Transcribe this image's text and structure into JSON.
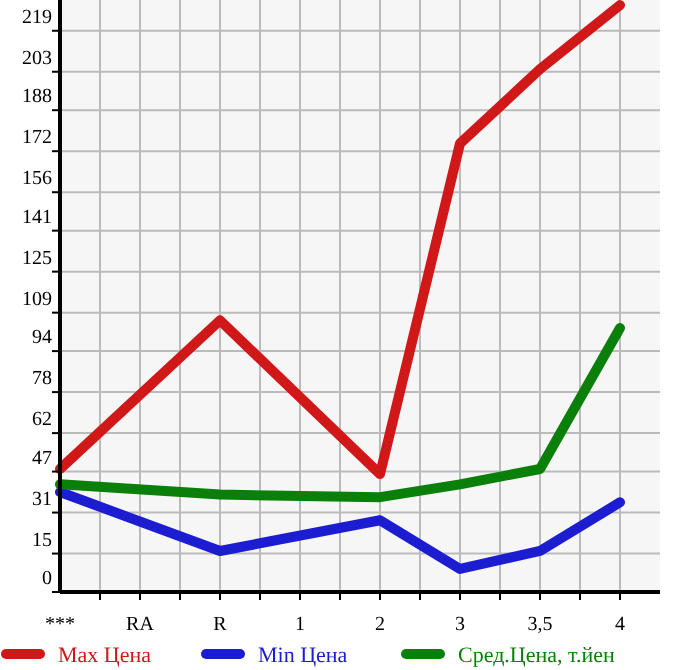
{
  "chart_data": {
    "type": "line",
    "categories": [
      "***",
      "RA",
      "R",
      "1",
      "2",
      "3",
      "3,5",
      "4"
    ],
    "series": [
      {
        "name": "Max Цена",
        "color": "#d01818",
        "values": [
          48,
          null,
          106,
          null,
          46,
          175,
          204,
          229
        ]
      },
      {
        "name": "Min Цена",
        "color": "#1c1cd0",
        "values": [
          39,
          null,
          16,
          null,
          28,
          9,
          16,
          35
        ]
      },
      {
        "name": "Сред.Цена, т.йен",
        "color": "#0a800a",
        "values": [
          42,
          null,
          38,
          null,
          37,
          42,
          48,
          103
        ]
      }
    ],
    "ylim": [
      0,
      231
    ],
    "yticks": [
      0,
      15,
      31,
      47,
      62,
      78,
      94,
      109,
      125,
      141,
      156,
      172,
      188,
      203,
      219
    ],
    "grid": true,
    "legend": "bottom",
    "marker": "none",
    "line_style": "solid"
  }
}
